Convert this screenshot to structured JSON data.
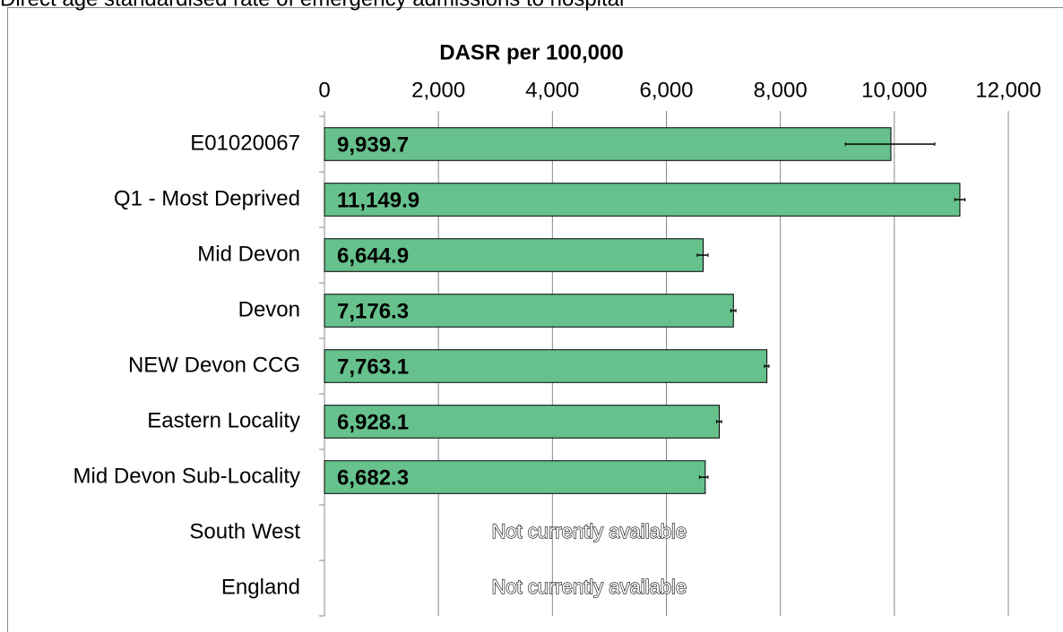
{
  "chart_data": {
    "type": "bar",
    "orientation": "horizontal",
    "title": "Direct age standardised rate of emergency admissions to hospital",
    "x_label": "DASR per 100,000",
    "categories": [
      "E01020067",
      "Q1 - Most Deprived",
      "Mid Devon",
      "Devon",
      "NEW Devon CCG",
      "Eastern Locality",
      "Mid Devon Sub-Locality",
      "South West",
      "England"
    ],
    "values": [
      9939.7,
      11149.9,
      6644.9,
      7176.3,
      7763.1,
      6928.1,
      6682.3,
      null,
      null
    ],
    "value_labels": [
      "9,939.7",
      "11,149.9",
      "6,644.9",
      "7,176.3",
      "7,763.1",
      "6,928.1",
      "6,682.3",
      "Not currently available",
      "Not currently available"
    ],
    "error_low": [
      9140,
      11060,
      6540,
      7130,
      7720,
      6880,
      6580,
      null,
      null
    ],
    "error_high": [
      10710,
      11240,
      6730,
      7220,
      7800,
      6970,
      6730,
      null,
      null
    ],
    "color": "#66c18c",
    "xlim": [
      0,
      12000
    ],
    "xticks": [
      0,
      {
        "value": 2000,
        "label": "2,000"
      },
      {
        "value": 4000,
        "label": "4,000"
      },
      {
        "value": 6000,
        "label": "6,000"
      },
      {
        "value": 8000,
        "label": "8,000"
      },
      {
        "value": 10000,
        "label": "10,000"
      },
      {
        "value": 12000,
        "label": "12,000"
      }
    ],
    "grid": true
  }
}
